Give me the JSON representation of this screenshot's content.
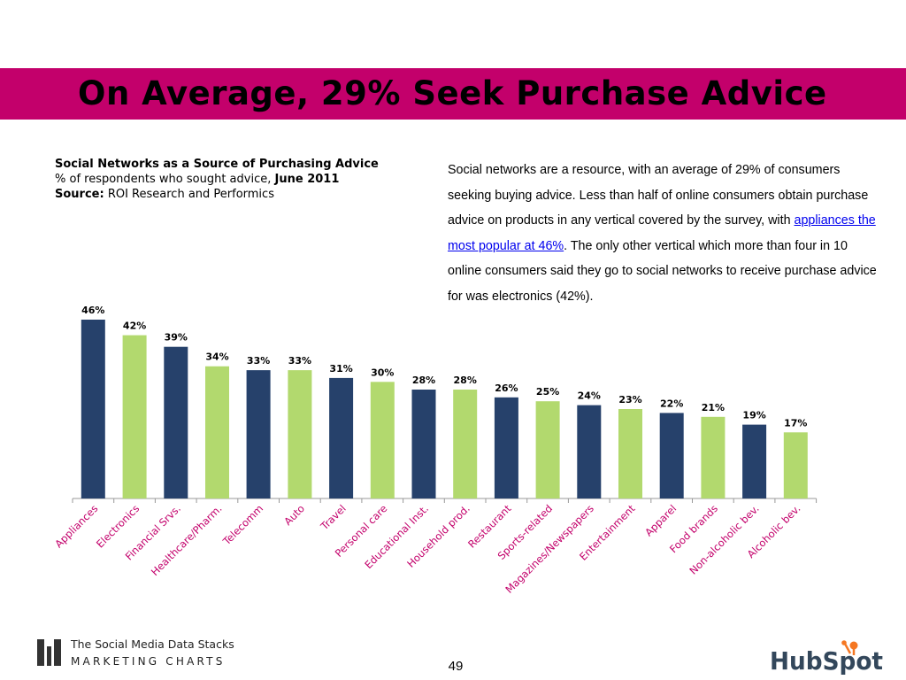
{
  "title": "On Average, 29% Seek Purchase Advice",
  "chart_meta": {
    "heading": "Social Networks as a Source of Purchasing Advice",
    "subtitle_prefix": "% of respondents who sought advice, ",
    "subtitle_date": "June 2011",
    "source_label": "Source:",
    "source_value": " ROI Research and Performics"
  },
  "description": {
    "before_link": "Social networks are a resource, with an average of 29% of consumers seeking buying advice. Less than half of online consumers obtain purchase advice on products in any vertical covered by the survey, with ",
    "link_text": "appliances the most popular at 46%",
    "after_link": ". The only other vertical which more than four in 10 online consumers said they go to social networks to receive purchase advice for was electronics (42%)."
  },
  "chart_data": {
    "type": "bar",
    "categories": [
      "Appliances",
      "Electronics",
      "Financial Srvs.",
      "Healthcare/Pharm.",
      "Telecomm",
      "Auto",
      "Travel",
      "Personal care",
      "Educational Inst.",
      "Household prod.",
      "Restaurant",
      "Sports-related",
      "Magazines/Newspapers",
      "Entertainment",
      "Apparel",
      "Food brands",
      "Non-alcoholic bev.",
      "Alcoholic bev."
    ],
    "values": [
      46,
      42,
      39,
      34,
      33,
      33,
      31,
      30,
      28,
      28,
      26,
      25,
      24,
      23,
      22,
      21,
      19,
      17
    ],
    "value_labels": [
      "46%",
      "42%",
      "39%",
      "34%",
      "33%",
      "33%",
      "31%",
      "30%",
      "28%",
      "28%",
      "26%",
      "25%",
      "24%",
      "23%",
      "22%",
      "21%",
      "19%",
      "17%"
    ],
    "colors": [
      "#26416b",
      "#b2d96e"
    ],
    "unit": "%",
    "ylim": [
      0,
      46
    ],
    "grid": false,
    "legend": "none"
  },
  "footer": {
    "logo_title": "The Social Media Data Stacks",
    "logo_sub": "MARKETING CHARTS",
    "page_number": "49",
    "brand": "HubSpot"
  },
  "icons": {
    "footer_logo": "marketing-charts-bars-icon",
    "brand_logo": "hubspot-sprocket-icon"
  }
}
